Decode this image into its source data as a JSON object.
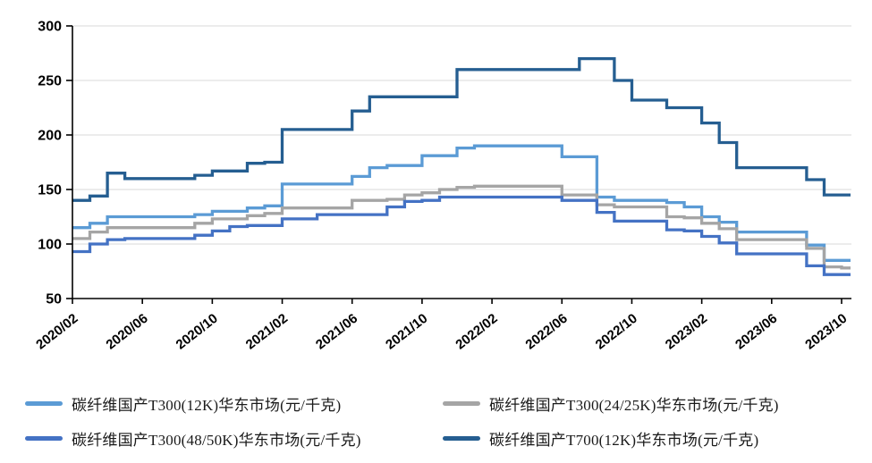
{
  "chart_data": {
    "type": "line",
    "subtype": "step-after",
    "title": "",
    "xlabel": "",
    "ylabel": "",
    "ylim": [
      50,
      300
    ],
    "y_ticks": [
      50,
      100,
      150,
      200,
      250,
      300
    ],
    "x_major_tick_every": 4,
    "grid": "horizontal",
    "legend_position": "bottom",
    "axis_color": "#000000",
    "gridline_color": "#d9d9d9",
    "x": [
      "2020/02",
      "2020/03",
      "2020/04",
      "2020/05",
      "2020/06",
      "2020/07",
      "2020/08",
      "2020/09",
      "2020/10",
      "2020/11",
      "2020/12",
      "2021/01",
      "2021/02",
      "2021/03",
      "2021/04",
      "2021/05",
      "2021/06",
      "2021/07",
      "2021/08",
      "2021/09",
      "2021/10",
      "2021/11",
      "2021/12",
      "2022/01",
      "2022/02",
      "2022/03",
      "2022/04",
      "2022/05",
      "2022/06",
      "2022/07",
      "2022/08",
      "2022/09",
      "2022/10",
      "2022/11",
      "2022/12",
      "2023/01",
      "2023/02",
      "2023/03",
      "2023/04",
      "2023/05",
      "2023/06",
      "2023/07",
      "2023/08",
      "2023/09",
      "2023/10"
    ],
    "x_tick_labels": [
      "2020/02",
      "2020/06",
      "2020/10",
      "2021/02",
      "2021/06",
      "2021/10",
      "2022/02",
      "2022/06",
      "2022/10",
      "2023/02",
      "2023/06",
      "2023/10"
    ],
    "series": [
      {
        "name": "碳纤维国产T300(12K)华东市场(元/千克)",
        "color": "#5B9BD5",
        "values": [
          115,
          119,
          125,
          125,
          125,
          125,
          125,
          127,
          130,
          130,
          133,
          135,
          155,
          155,
          155,
          155,
          162,
          170,
          172,
          172,
          181,
          181,
          188,
          190,
          190,
          190,
          190,
          190,
          180,
          180,
          143,
          140,
          140,
          140,
          138,
          134,
          125,
          120,
          111,
          111,
          111,
          111,
          99,
          85,
          85
        ]
      },
      {
        "name": "碳纤维国产T300(24/25K)华东市场(元/千克)",
        "color": "#A5A5A5",
        "values": [
          105,
          111,
          115,
          115,
          115,
          115,
          115,
          119,
          123,
          123,
          126,
          128,
          133,
          133,
          133,
          133,
          140,
          140,
          141,
          145,
          147,
          150,
          152,
          153,
          153,
          153,
          153,
          153,
          145,
          145,
          136,
          134,
          134,
          134,
          125,
          124,
          119,
          114,
          104,
          104,
          104,
          104,
          96,
          79,
          78
        ]
      },
      {
        "name": "碳纤维国产T300(48/50K)华东市场(元/千克)",
        "color": "#4472C4",
        "values": [
          93,
          100,
          104,
          105,
          105,
          105,
          105,
          108,
          112,
          116,
          117,
          117,
          123,
          123,
          127,
          127,
          127,
          127,
          134,
          139,
          140,
          143,
          143,
          143,
          143,
          143,
          143,
          143,
          140,
          140,
          129,
          121,
          121,
          121,
          113,
          112,
          107,
          101,
          91,
          91,
          91,
          91,
          80,
          72,
          72
        ]
      },
      {
        "name": "碳纤维国产T700(12K)华东市场(元/千克)",
        "color": "#255E91",
        "values": [
          140,
          144,
          165,
          160,
          160,
          160,
          160,
          163,
          167,
          167,
          174,
          175,
          205,
          205,
          205,
          205,
          222,
          235,
          235,
          235,
          235,
          235,
          260,
          260,
          260,
          260,
          260,
          260,
          260,
          270,
          270,
          250,
          232,
          232,
          225,
          225,
          211,
          193,
          170,
          170,
          170,
          170,
          159,
          145,
          145
        ]
      }
    ]
  }
}
